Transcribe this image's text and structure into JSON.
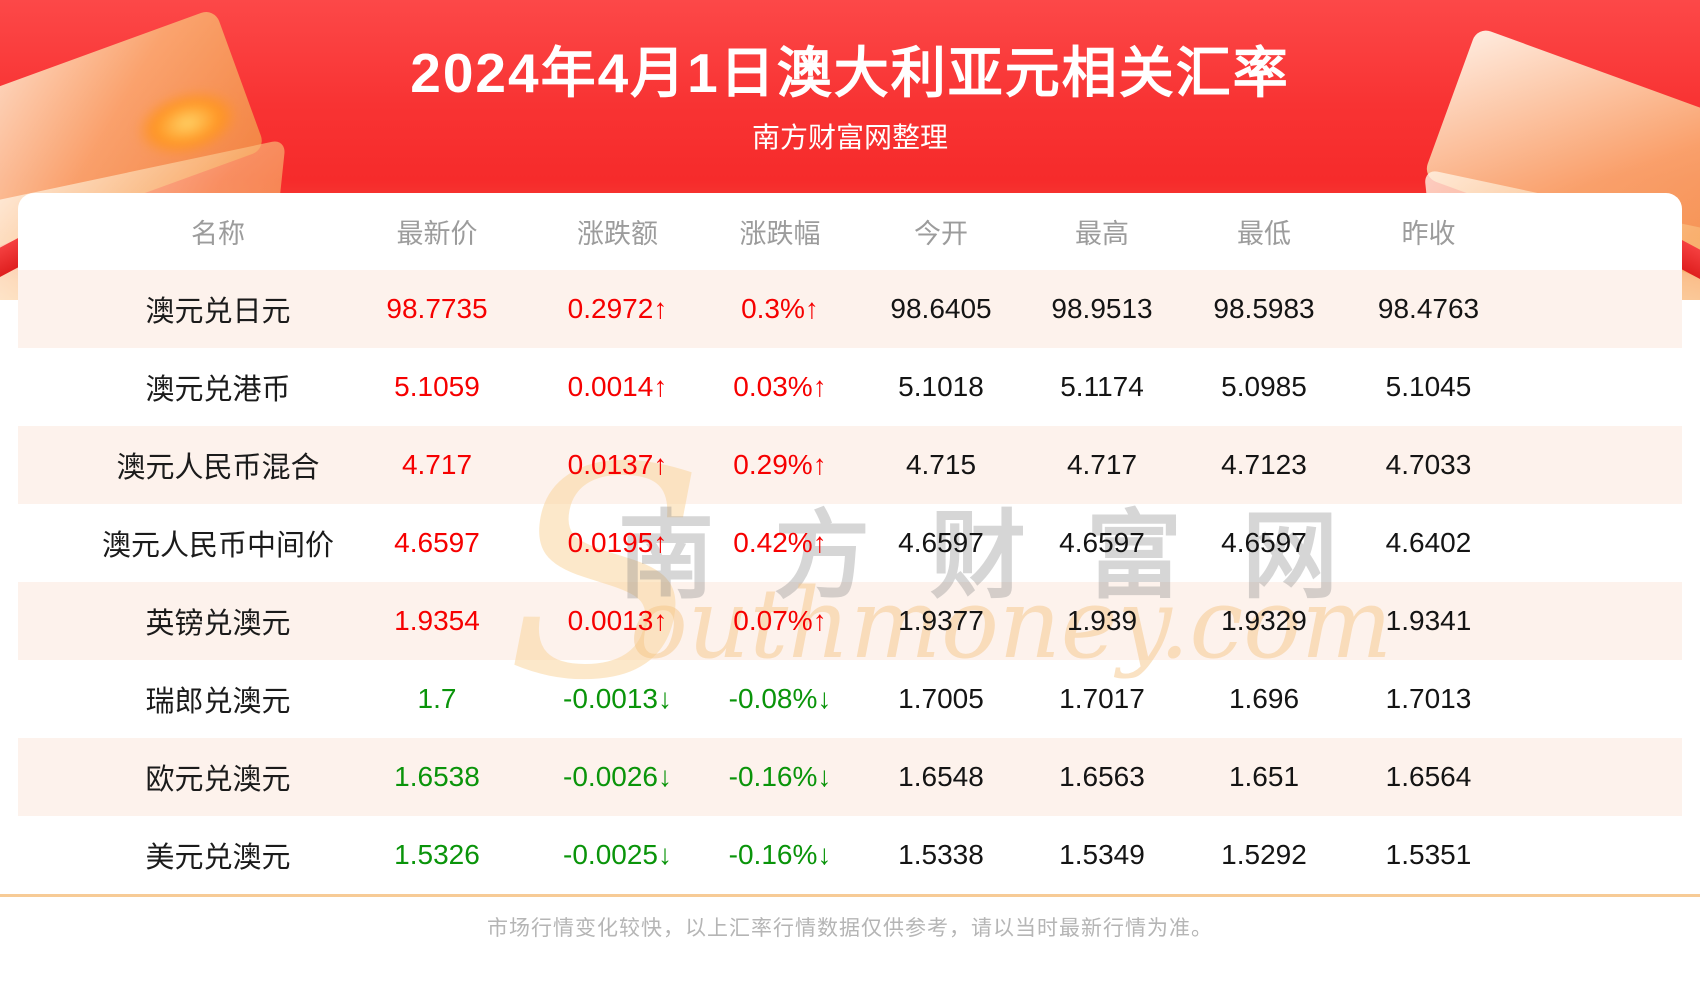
{
  "header": {
    "title": "2024年4月1日澳大利亚元相关汇率",
    "subtitle": "南方财富网整理"
  },
  "watermark": {
    "initial": "S",
    "brand_cn": "南方财富网",
    "brand_en": "outhmoney.com"
  },
  "table": {
    "columns": [
      "名称",
      "最新价",
      "涨跌额",
      "涨跌幅",
      "今开",
      "最高",
      "最低",
      "昨收"
    ],
    "rows": [
      {
        "name": "澳元兑日元",
        "trend": "up",
        "values": [
          "98.7735",
          "0.2972↑",
          "0.3%↑",
          "98.6405",
          "98.9513",
          "98.5983",
          "98.4763"
        ]
      },
      {
        "name": "澳元兑港币",
        "trend": "up",
        "values": [
          "5.1059",
          "0.0014↑",
          "0.03%↑",
          "5.1018",
          "5.1174",
          "5.0985",
          "5.1045"
        ]
      },
      {
        "name": "澳元人民币混合",
        "trend": "up",
        "values": [
          "4.717",
          "0.0137↑",
          "0.29%↑",
          "4.715",
          "4.717",
          "4.7123",
          "4.7033"
        ]
      },
      {
        "name": "澳元人民币中间价",
        "trend": "up",
        "values": [
          "4.6597",
          "0.0195↑",
          "0.42%↑",
          "4.6597",
          "4.6597",
          "4.6597",
          "4.6402"
        ]
      },
      {
        "name": "英镑兑澳元",
        "trend": "up",
        "values": [
          "1.9354",
          "0.0013↑",
          "0.07%↑",
          "1.9377",
          "1.939",
          "1.9329",
          "1.9341"
        ]
      },
      {
        "name": "瑞郎兑澳元",
        "trend": "down",
        "values": [
          "1.7",
          "-0.0013↓",
          "-0.08%↓",
          "1.7005",
          "1.7017",
          "1.696",
          "1.7013"
        ]
      },
      {
        "name": "欧元兑澳元",
        "trend": "down",
        "values": [
          "1.6538",
          "-0.0026↓",
          "-0.16%↓",
          "1.6548",
          "1.6563",
          "1.651",
          "1.6564"
        ]
      },
      {
        "name": "美元兑澳元",
        "trend": "down",
        "values": [
          "1.5326",
          "-0.0025↓",
          "-0.16%↓",
          "1.5338",
          "1.5349",
          "1.5292",
          "1.5351"
        ]
      }
    ]
  },
  "footer": {
    "disclaimer": "市场行情变化较快，以上汇率行情数据仅供参考，请以当时最新行情为准。"
  },
  "colors": {
    "up": "#f60000",
    "down": "#0a940a",
    "banner_red": "#f62b2b",
    "row_alt": "#fdf2ec",
    "divider": "#f7cb96",
    "header_text": "#9c9c9c",
    "disclaimer_text": "#b5b5b5"
  },
  "chart_data": {
    "type": "table",
    "title": "2024年4月1日澳大利亚元相关汇率",
    "columns": [
      "名称",
      "最新价",
      "涨跌额",
      "涨跌幅",
      "今开",
      "最高",
      "最低",
      "昨收"
    ],
    "rows": [
      [
        "澳元兑日元",
        98.7735,
        0.2972,
        "0.3%",
        98.6405,
        98.9513,
        98.5983,
        98.4763
      ],
      [
        "澳元兑港币",
        5.1059,
        0.0014,
        "0.03%",
        5.1018,
        5.1174,
        5.0985,
        5.1045
      ],
      [
        "澳元人民币混合",
        4.717,
        0.0137,
        "0.29%",
        4.715,
        4.717,
        4.7123,
        4.7033
      ],
      [
        "澳元人民币中间价",
        4.6597,
        0.0195,
        "0.42%",
        4.6597,
        4.6597,
        4.6597,
        4.6402
      ],
      [
        "英镑兑澳元",
        1.9354,
        0.0013,
        "0.07%",
        1.9377,
        1.939,
        1.9329,
        1.9341
      ],
      [
        "瑞郎兑澳元",
        1.7,
        -0.0013,
        "-0.08%",
        1.7005,
        1.7017,
        1.696,
        1.7013
      ],
      [
        "欧元兑澳元",
        1.6538,
        -0.0026,
        "-0.16%",
        1.6548,
        1.6563,
        1.651,
        1.6564
      ],
      [
        "美元兑澳元",
        1.5326,
        -0.0025,
        "-0.16%",
        1.5338,
        1.5349,
        1.5292,
        1.5351
      ]
    ]
  }
}
